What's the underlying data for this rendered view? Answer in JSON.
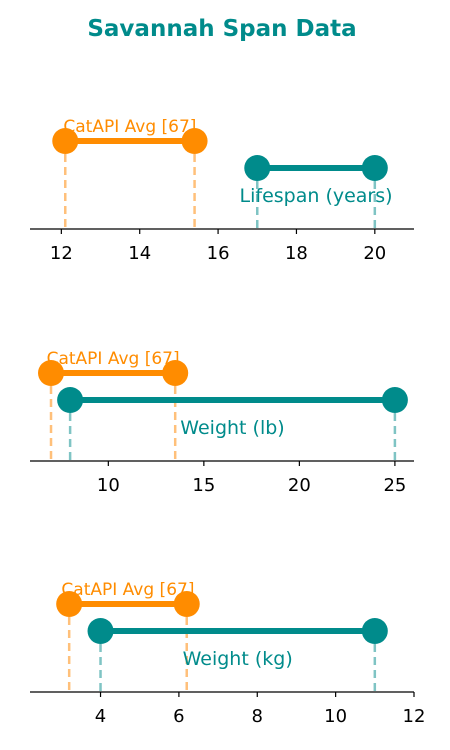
{
  "title": "Savannah Span Data",
  "colors": {
    "title": "#008b8b",
    "breed": "#008b8b",
    "breed_guide": "#7fc4c4",
    "average": "#ff8c00",
    "average_guide": "#ffc07a",
    "axis": "#000000"
  },
  "chart_data": [
    {
      "type": "range",
      "xlim": [
        11.2,
        21
      ],
      "ticks": [
        12,
        14,
        16,
        18,
        20
      ],
      "series": [
        {
          "name": "CatAPI Avg [67]",
          "low": 12.1,
          "high": 15.4
        },
        {
          "name": "Lifespan (years)",
          "low": 17,
          "high": 20
        }
      ]
    },
    {
      "type": "range",
      "xlim": [
        5.9,
        26
      ],
      "ticks": [
        10,
        15,
        20,
        25
      ],
      "series": [
        {
          "name": "CatAPI Avg [67]",
          "low": 7,
          "high": 13.5
        },
        {
          "name": "Weight (lb)",
          "low": 8,
          "high": 25
        }
      ]
    },
    {
      "type": "range",
      "xlim": [
        2.2,
        12
      ],
      "ticks": [
        4,
        6,
        8,
        10,
        12
      ],
      "series": [
        {
          "name": "CatAPI Avg [67]",
          "low": 3.2,
          "high": 6.2
        },
        {
          "name": "Weight (kg)",
          "low": 4,
          "high": 11
        }
      ]
    }
  ]
}
